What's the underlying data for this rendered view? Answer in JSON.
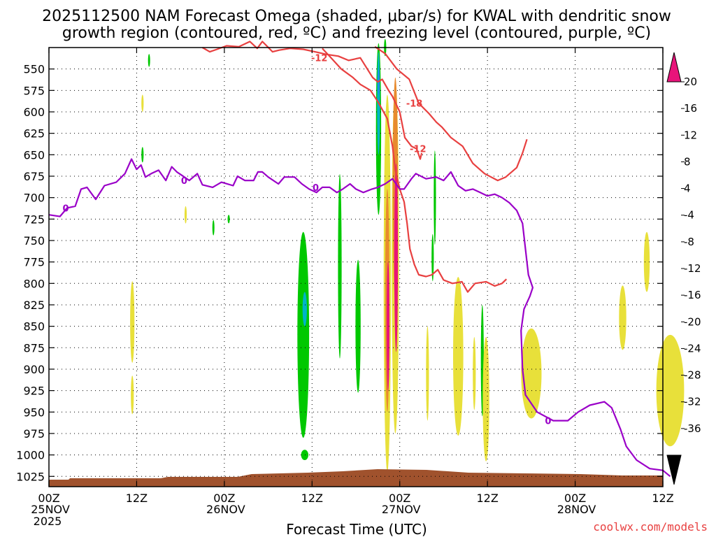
{
  "title": {
    "line1": "2025112500 NAM Forecast Omega (shaded, μbar/s) for KWAL with dendritic snow",
    "line2": "growth region (contoured, red, ºC) and freezing level (contoured, purple, ºC)"
  },
  "credit": "coolwx.com/models",
  "chart_data": {
    "type": "heatmap",
    "xlabel": "Forecast Time (UTC)",
    "ylabel": "",
    "x_hours_range": [
      0,
      84
    ],
    "x_ticks": [
      {
        "h": 0,
        "label": "00Z",
        "sub": "25NOV",
        "sub2": "2025"
      },
      {
        "h": 12,
        "label": "12Z",
        "sub": "",
        "sub2": ""
      },
      {
        "h": 24,
        "label": "00Z",
        "sub": "26NOV",
        "sub2": ""
      },
      {
        "h": 36,
        "label": "12Z",
        "sub": "",
        "sub2": ""
      },
      {
        "h": 48,
        "label": "00Z",
        "sub": "27NOV",
        "sub2": ""
      },
      {
        "h": 60,
        "label": "12Z",
        "sub": "",
        "sub2": ""
      },
      {
        "h": 72,
        "label": "00Z",
        "sub": "28NOV",
        "sub2": ""
      },
      {
        "h": 84,
        "label": "12Z",
        "sub": "",
        "sub2": ""
      }
    ],
    "y_pressure_range": [
      525,
      1037
    ],
    "y_ticks": [
      550,
      575,
      600,
      625,
      650,
      675,
      700,
      725,
      750,
      775,
      800,
      825,
      850,
      875,
      900,
      925,
      950,
      975,
      1000,
      1025
    ],
    "grid": true,
    "colorbar": {
      "labels": [
        "20",
        "16",
        "12",
        "8",
        "4",
        "-4",
        "-8",
        "-12",
        "-16",
        "-20",
        "-24",
        "-28",
        "-32",
        "-36"
      ],
      "colors": [
        "#f0446c",
        "#e83c30",
        "#e88a2e",
        "#e0b43a",
        "#e8e03a",
        "#ffffff",
        "#00c800",
        "#00c896",
        "#00b4c8",
        "#1e8cf0",
        "#1e3ce6",
        "#6414d2",
        "#9600c8",
        "#a0a0a0"
      ],
      "top_arrow_color": "#e8147a",
      "bottom_arrow_color": "#000000"
    },
    "omega_blobs": [
      {
        "h": 11.4,
        "p": 845,
        "dh": 0.6,
        "dp": 95,
        "color": "#e8e03a"
      },
      {
        "h": 11.4,
        "p": 930,
        "dh": 0.4,
        "dp": 45,
        "color": "#e8e03a"
      },
      {
        "h": 12.8,
        "p": 590,
        "dh": 0.3,
        "dp": 20,
        "color": "#e8e03a"
      },
      {
        "h": 12.8,
        "p": 650,
        "dh": 0.3,
        "dp": 18,
        "color": "#00c800"
      },
      {
        "h": 13.7,
        "p": 540,
        "dh": 0.2,
        "dp": 15,
        "color": "#00c800"
      },
      {
        "h": 18.7,
        "p": 720,
        "dh": 0.3,
        "dp": 20,
        "color": "#e8e03a"
      },
      {
        "h": 22.5,
        "p": 735,
        "dh": 0.2,
        "dp": 18,
        "color": "#00c800"
      },
      {
        "h": 24.6,
        "p": 725,
        "dh": 0.3,
        "dp": 10,
        "color": "#00c800"
      },
      {
        "h": 35.0,
        "p": 1000,
        "dh": 1.0,
        "dp": 12,
        "color": "#00c800"
      },
      {
        "h": 34.8,
        "p": 860,
        "dh": 1.6,
        "dp": 240,
        "color": "#00c800"
      },
      {
        "h": 35.0,
        "p": 830,
        "dh": 0.6,
        "dp": 40,
        "color": "#00b4c8"
      },
      {
        "h": 39.8,
        "p": 780,
        "dh": 0.5,
        "dp": 215,
        "color": "#00c800"
      },
      {
        "h": 42.3,
        "p": 850,
        "dh": 0.7,
        "dp": 155,
        "color": "#00c800"
      },
      {
        "h": 45.1,
        "p": 620,
        "dh": 0.7,
        "dp": 200,
        "color": "#00c800"
      },
      {
        "h": 45.1,
        "p": 590,
        "dh": 0.4,
        "dp": 120,
        "color": "#00b4c8"
      },
      {
        "h": 45.1,
        "p": 565,
        "dh": 0.2,
        "dp": 30,
        "color": "#1e8cf0"
      },
      {
        "h": 46.3,
        "p": 800,
        "dh": 1.0,
        "dp": 440,
        "color": "#e8e03a"
      },
      {
        "h": 46.3,
        "p": 820,
        "dh": 0.6,
        "dp": 260,
        "color": "#e88a2e"
      },
      {
        "h": 46.4,
        "p": 850,
        "dh": 0.4,
        "dp": 150,
        "color": "#e8147a"
      },
      {
        "h": 47.4,
        "p": 770,
        "dh": 1.0,
        "dp": 410,
        "color": "#e8e03a"
      },
      {
        "h": 47.4,
        "p": 690,
        "dh": 0.7,
        "dp": 260,
        "color": "#e88a2e"
      },
      {
        "h": 47.5,
        "p": 770,
        "dh": 0.5,
        "dp": 220,
        "color": "#e8147a"
      },
      {
        "h": 46.0,
        "p": 525,
        "dh": 0.3,
        "dp": 20,
        "color": "#00c800"
      },
      {
        "h": 51.8,
        "p": 905,
        "dh": 0.4,
        "dp": 110,
        "color": "#e8e03a"
      },
      {
        "h": 52.8,
        "p": 700,
        "dh": 0.3,
        "dp": 110,
        "color": "#00c800"
      },
      {
        "h": 52.5,
        "p": 770,
        "dh": 0.3,
        "dp": 55,
        "color": "#00c800"
      },
      {
        "h": 56.0,
        "p": 885,
        "dh": 1.4,
        "dp": 185,
        "color": "#e8e03a"
      },
      {
        "h": 58.2,
        "p": 905,
        "dh": 0.4,
        "dp": 85,
        "color": "#e8e03a"
      },
      {
        "h": 59.3,
        "p": 890,
        "dh": 0.4,
        "dp": 130,
        "color": "#00c800"
      },
      {
        "h": 59.8,
        "p": 935,
        "dh": 0.9,
        "dp": 145,
        "color": "#e8e03a"
      },
      {
        "h": 66.0,
        "p": 905,
        "dh": 2.8,
        "dp": 105,
        "color": "#e8e03a"
      },
      {
        "h": 78.5,
        "p": 840,
        "dh": 1.0,
        "dp": 75,
        "color": "#e8e03a"
      },
      {
        "h": 81.8,
        "p": 775,
        "dh": 0.8,
        "dp": 70,
        "color": "#e8e03a"
      },
      {
        "h": 85.0,
        "p": 925,
        "dh": 3.8,
        "dp": 130,
        "color": "#e8e03a"
      }
    ],
    "freezing_level": {
      "color": "#9a00c8",
      "label": "0",
      "points": [
        [
          0,
          720
        ],
        [
          1.5,
          722
        ],
        [
          2.5,
          712
        ],
        [
          3.6,
          710
        ],
        [
          4.4,
          690
        ],
        [
          5.2,
          688
        ],
        [
          6.4,
          702
        ],
        [
          7.6,
          686
        ],
        [
          9.2,
          682
        ],
        [
          10.4,
          672
        ],
        [
          11.3,
          655
        ],
        [
          12.0,
          667
        ],
        [
          12.6,
          662
        ],
        [
          13.2,
          676
        ],
        [
          14.0,
          672
        ],
        [
          15.0,
          668
        ],
        [
          16.0,
          680
        ],
        [
          16.8,
          664
        ],
        [
          17.5,
          670
        ],
        [
          18.2,
          674
        ],
        [
          19.2,
          680
        ],
        [
          20.3,
          672
        ],
        [
          21.0,
          685
        ],
        [
          22.4,
          688
        ],
        [
          23.6,
          682
        ],
        [
          25.2,
          686
        ],
        [
          25.8,
          675
        ],
        [
          26.8,
          680
        ],
        [
          28.0,
          680
        ],
        [
          28.6,
          670
        ],
        [
          29.2,
          670
        ],
        [
          30.0,
          676
        ],
        [
          31.4,
          684
        ],
        [
          32.2,
          676
        ],
        [
          33.6,
          676
        ],
        [
          34.6,
          684
        ],
        [
          35.6,
          690
        ],
        [
          36.6,
          694
        ],
        [
          37.4,
          688
        ],
        [
          38.4,
          688
        ],
        [
          39.4,
          694
        ],
        [
          40.2,
          690
        ],
        [
          41.2,
          684
        ],
        [
          42.0,
          690
        ],
        [
          43.0,
          694
        ],
        [
          44.2,
          690
        ],
        [
          45.0,
          688
        ],
        [
          46.0,
          684
        ],
        [
          47.0,
          678
        ],
        [
          48.0,
          690
        ],
        [
          48.6,
          690
        ],
        [
          49.6,
          678
        ],
        [
          50.2,
          672
        ],
        [
          51.6,
          678
        ],
        [
          53.0,
          676
        ],
        [
          54.0,
          680
        ],
        [
          55.0,
          670
        ],
        [
          56.0,
          686
        ],
        [
          57.0,
          692
        ],
        [
          58.0,
          690
        ],
        [
          59.0,
          694
        ],
        [
          60.0,
          698
        ],
        [
          61.0,
          696
        ],
        [
          62.0,
          700
        ],
        [
          63.0,
          706
        ],
        [
          64.0,
          715
        ],
        [
          64.8,
          730
        ],
        [
          65.2,
          760
        ],
        [
          65.6,
          790
        ],
        [
          66.2,
          805
        ],
        [
          65.8,
          815
        ],
        [
          65.0,
          830
        ],
        [
          64.6,
          855
        ],
        [
          64.8,
          900
        ],
        [
          65.2,
          930
        ],
        [
          66.8,
          950
        ],
        [
          69.0,
          960
        ],
        [
          71.0,
          960
        ],
        [
          72.4,
          950
        ],
        [
          74.0,
          942
        ],
        [
          76.0,
          938
        ],
        [
          77.0,
          945
        ],
        [
          78.2,
          970
        ],
        [
          79.0,
          990
        ],
        [
          80.4,
          1006
        ],
        [
          82.2,
          1016
        ],
        [
          84.0,
          1018
        ],
        [
          85.0,
          1025
        ]
      ],
      "label_at": [
        [
          2.3,
          712
        ],
        [
          18.5,
          680
        ],
        [
          36.5,
          688
        ],
        [
          68.3,
          960
        ]
      ]
    },
    "dgz_contours": [
      {
        "color": "#e84040",
        "label": "-12",
        "points": [
          [
            21.0,
            525
          ],
          [
            22.0,
            530
          ],
          [
            23.0,
            527
          ],
          [
            24.3,
            523
          ],
          [
            26.0,
            524
          ],
          [
            27.5,
            518
          ],
          [
            28.5,
            526
          ],
          [
            29.2,
            518
          ],
          [
            30.6,
            530
          ],
          [
            31.5,
            528
          ],
          [
            33.0,
            526
          ],
          [
            34.8,
            527
          ],
          [
            36.4,
            530
          ],
          [
            38.0,
            533
          ],
          [
            39.6,
            535
          ],
          [
            41.0,
            540
          ],
          [
            42.6,
            537
          ],
          [
            44.3,
            560
          ],
          [
            45.0,
            565
          ],
          [
            45.6,
            562
          ],
          [
            46.4,
            574
          ],
          [
            47.0,
            582
          ],
          [
            48.0,
            600
          ],
          [
            48.7,
            630
          ],
          [
            49.6,
            640
          ],
          [
            50.3,
            643
          ],
          [
            50.8,
            655
          ],
          [
            51.0,
            648
          ]
        ],
        "label_at": [
          [
            37.0,
            537
          ],
          [
            50.5,
            643
          ]
        ]
      },
      {
        "color": "#e84040",
        "label": "-18",
        "points": [
          [
            44.6,
            524
          ],
          [
            46.0,
            532
          ],
          [
            47.6,
            550
          ],
          [
            49.3,
            562
          ],
          [
            50.6,
            590
          ],
          [
            52.0,
            602
          ],
          [
            53.0,
            612
          ],
          [
            53.8,
            618
          ],
          [
            55.0,
            630
          ],
          [
            56.6,
            640
          ],
          [
            58.0,
            660
          ],
          [
            59.6,
            672
          ],
          [
            61.4,
            680
          ],
          [
            62.5,
            676
          ],
          [
            64.0,
            665
          ],
          [
            64.8,
            648
          ],
          [
            65.4,
            632
          ]
        ],
        "label_at": [
          [
            50.0,
            590
          ]
        ]
      },
      {
        "color": "#e84040",
        "label": "-12",
        "points": [
          [
            37.4,
            526
          ],
          [
            38.6,
            537
          ],
          [
            40.0,
            550
          ],
          [
            41.6,
            560
          ],
          [
            42.6,
            568
          ],
          [
            44.0,
            575
          ],
          [
            45.0,
            588
          ],
          [
            46.3,
            608
          ],
          [
            47.0,
            640
          ],
          [
            47.4,
            668
          ],
          [
            48.0,
            690
          ],
          [
            48.6,
            705
          ],
          [
            49.0,
            730
          ],
          [
            49.4,
            760
          ],
          [
            50.0,
            778
          ],
          [
            50.6,
            790
          ],
          [
            51.6,
            792
          ],
          [
            52.4,
            790
          ],
          [
            53.2,
            784
          ],
          [
            54.0,
            796
          ],
          [
            55.2,
            800
          ],
          [
            56.5,
            798
          ],
          [
            57.3,
            810
          ],
          [
            58.3,
            800
          ],
          [
            59.8,
            798
          ],
          [
            61.0,
            803
          ],
          [
            62.0,
            800
          ],
          [
            62.6,
            795
          ]
        ],
        "label_at": []
      }
    ]
  }
}
